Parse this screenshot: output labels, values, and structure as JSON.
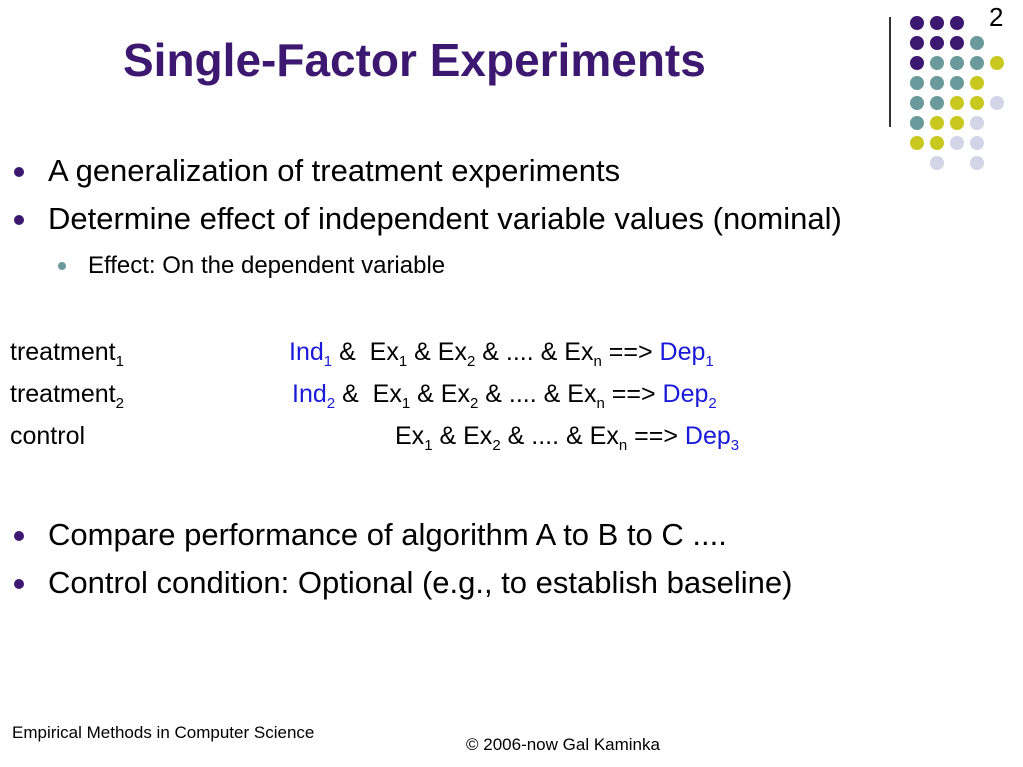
{
  "page_number": "2",
  "title": "Single-Factor Experiments",
  "bullets_top": [
    "A generalization of treatment experiments",
    "Determine effect of independent variable values (nominal)"
  ],
  "sub_bullet": "Effect: On the dependent variable",
  "table": {
    "amp": "&",
    "dots": "....",
    "arrow": "==>",
    "ex": "Ex",
    "one": "1",
    "two": "2",
    "n": "n",
    "rows": [
      {
        "label": "treatment",
        "label_sub": "1",
        "ind": "Ind",
        "ind_sub": "1",
        "dep": "Dep",
        "dep_sub": "1"
      },
      {
        "label": "treatment",
        "label_sub": "2",
        "ind": "Ind",
        "ind_sub": "2",
        "dep": "Dep",
        "dep_sub": "2"
      },
      {
        "label": "control",
        "dep": "Dep",
        "dep_sub": "3"
      }
    ]
  },
  "bullets_bottom": [
    "Compare performance of algorithm A to B to C ....",
    "Control condition: Optional (e.g., to establish baseline)"
  ],
  "footer": {
    "left": "Empirical Methods in Computer Science",
    "right": "© 2006-now  Gal Kaminka"
  },
  "colors": {
    "title": "#3d1870",
    "accent_blue": "#1a1ad8",
    "dot_purple": "#3d1870",
    "dot_teal": "#6b9a9c",
    "dot_yellow": "#c8c81e",
    "dot_lavender": "#d4d4e8"
  }
}
